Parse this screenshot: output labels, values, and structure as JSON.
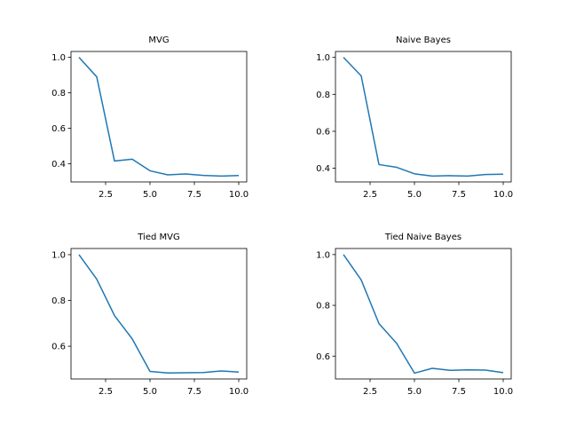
{
  "figure": {
    "line_color": "#1f77b4",
    "background": "#ffffff"
  },
  "chart_data": [
    {
      "type": "line",
      "title": "MVG",
      "x": [
        1,
        2,
        3,
        4,
        5,
        6,
        7,
        8,
        9,
        10
      ],
      "y": [
        1.0,
        0.89,
        0.415,
        0.425,
        0.36,
        0.337,
        0.342,
        0.334,
        0.33,
        0.333
      ],
      "xlim": [
        0.55,
        10.45
      ],
      "ylim": [
        0.297,
        1.033
      ],
      "xticks": [
        2.5,
        5.0,
        7.5,
        10.0
      ],
      "xtick_labels": [
        "2.5",
        "5.0",
        "7.5",
        "10.0"
      ],
      "yticks": [
        0.4,
        0.6,
        0.8,
        1.0
      ],
      "ytick_labels": [
        "0.4",
        "0.6",
        "0.8",
        "1.0"
      ],
      "xlabel": "",
      "ylabel": "",
      "grid": false
    },
    {
      "type": "line",
      "title": "Naive Bayes",
      "x": [
        1,
        2,
        3,
        4,
        5,
        6,
        7,
        8,
        9,
        10
      ],
      "y": [
        1.0,
        0.9,
        0.42,
        0.405,
        0.37,
        0.358,
        0.36,
        0.358,
        0.366,
        0.368
      ],
      "xlim": [
        0.55,
        10.45
      ],
      "ylim": [
        0.326,
        1.032
      ],
      "xticks": [
        2.5,
        5.0,
        7.5,
        10.0
      ],
      "xtick_labels": [
        "2.5",
        "5.0",
        "7.5",
        "10.0"
      ],
      "yticks": [
        0.4,
        0.6,
        0.8,
        1.0
      ],
      "ytick_labels": [
        "0.4",
        "0.6",
        "0.8",
        "1.0"
      ],
      "xlabel": "",
      "ylabel": "",
      "grid": false
    },
    {
      "type": "line",
      "title": "Tied MVG",
      "x": [
        1,
        2,
        3,
        4,
        5,
        6,
        7,
        8,
        9,
        10
      ],
      "y": [
        1.0,
        0.893,
        0.734,
        0.632,
        0.49,
        0.483,
        0.484,
        0.485,
        0.492,
        0.487
      ],
      "xlim": [
        0.55,
        10.45
      ],
      "ylim": [
        0.457,
        1.027
      ],
      "xticks": [
        2.5,
        5.0,
        7.5,
        10.0
      ],
      "xtick_labels": [
        "2.5",
        "5.0",
        "7.5",
        "10.0"
      ],
      "yticks": [
        0.6,
        0.8,
        1.0
      ],
      "ytick_labels": [
        "0.6",
        "0.8",
        "1.0"
      ],
      "xlabel": "",
      "ylabel": "",
      "grid": false
    },
    {
      "type": "line",
      "title": "Tied Naive Bayes",
      "x": [
        1,
        2,
        3,
        4,
        5,
        6,
        7,
        8,
        9,
        10
      ],
      "y": [
        1.0,
        0.9,
        0.728,
        0.65,
        0.533,
        0.552,
        0.544,
        0.546,
        0.545,
        0.535
      ],
      "xlim": [
        0.55,
        10.45
      ],
      "ylim": [
        0.51,
        1.024
      ],
      "xticks": [
        2.5,
        5.0,
        7.5,
        10.0
      ],
      "xtick_labels": [
        "2.5",
        "5.0",
        "7.5",
        "10.0"
      ],
      "yticks": [
        0.6,
        0.8,
        1.0
      ],
      "ytick_labels": [
        "0.6",
        "0.8",
        "1.0"
      ],
      "xlabel": "",
      "ylabel": "",
      "grid": false
    }
  ]
}
